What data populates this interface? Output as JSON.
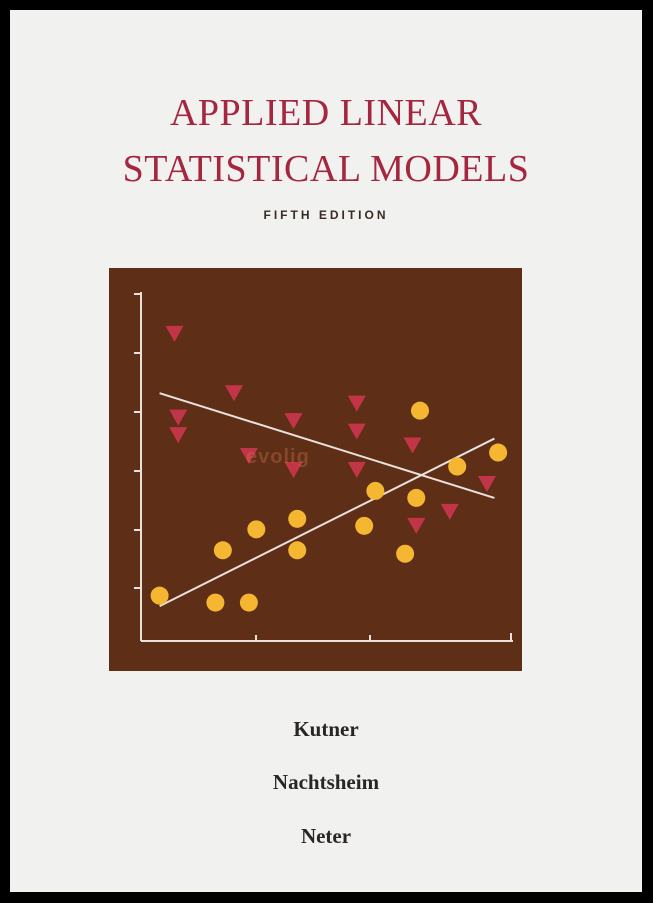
{
  "cover": {
    "title_line_1": "APPLIED LINEAR",
    "title_line_2": "STATISTICAL MODELS",
    "edition": "FIFTH EDITION",
    "authors": [
      "Kutner",
      "Nachtsheim",
      "Neter"
    ],
    "watermark": "evolig"
  },
  "colors": {
    "title": "#a5263f",
    "panel": "#5e2e17",
    "circle_marker": "#f5b731",
    "triangle_marker": "#c23548",
    "axis": "#e9e1dc"
  },
  "chart_data": {
    "type": "scatter",
    "title": "",
    "xlabel": "",
    "ylabel": "",
    "xlim": [
      0,
      10
    ],
    "ylim": [
      0,
      10
    ],
    "grid": false,
    "series": [
      {
        "marker": "circle",
        "points": [
          {
            "x": 0.5,
            "y": 1.3
          },
          {
            "x": 2.0,
            "y": 1.1
          },
          {
            "x": 2.2,
            "y": 2.6
          },
          {
            "x": 2.9,
            "y": 1.1
          },
          {
            "x": 3.1,
            "y": 3.2
          },
          {
            "x": 4.2,
            "y": 3.5
          },
          {
            "x": 4.2,
            "y": 2.6
          },
          {
            "x": 6.0,
            "y": 3.3
          },
          {
            "x": 6.3,
            "y": 4.3
          },
          {
            "x": 7.1,
            "y": 2.5
          },
          {
            "x": 7.4,
            "y": 4.1
          },
          {
            "x": 7.5,
            "y": 6.6
          },
          {
            "x": 8.5,
            "y": 5.0
          },
          {
            "x": 9.6,
            "y": 5.4
          }
        ],
        "trend_line": {
          "x": [
            0.5,
            9.5
          ],
          "y": [
            1.0,
            5.8
          ]
        }
      },
      {
        "marker": "triangle-down",
        "points": [
          {
            "x": 0.9,
            "y": 8.8
          },
          {
            "x": 1.0,
            "y": 6.4
          },
          {
            "x": 1.0,
            "y": 5.9
          },
          {
            "x": 2.5,
            "y": 7.1
          },
          {
            "x": 2.9,
            "y": 5.3
          },
          {
            "x": 4.1,
            "y": 6.3
          },
          {
            "x": 4.1,
            "y": 4.9
          },
          {
            "x": 5.8,
            "y": 6.8
          },
          {
            "x": 5.8,
            "y": 6.0
          },
          {
            "x": 5.8,
            "y": 4.9
          },
          {
            "x": 7.3,
            "y": 5.6
          },
          {
            "x": 7.4,
            "y": 3.3
          },
          {
            "x": 8.3,
            "y": 3.7
          },
          {
            "x": 9.3,
            "y": 4.5
          }
        ],
        "trend_line": {
          "x": [
            0.5,
            9.5
          ],
          "y": [
            7.1,
            4.1
          ]
        }
      }
    ]
  }
}
